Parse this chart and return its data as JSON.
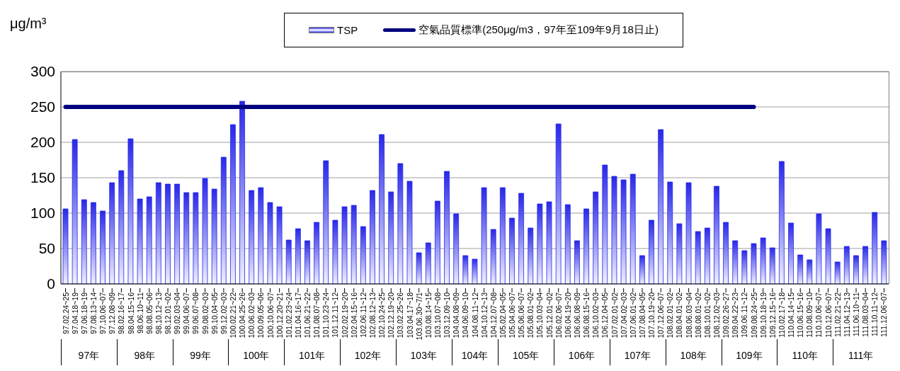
{
  "chart_data": {
    "type": "bar",
    "ylabel": "μg/m³",
    "categories": [
      "97.02.24~25",
      "97.04.18~19",
      "97.06.18~19",
      "97.08.13~14",
      "97.10.06~07",
      "97.12.08~09",
      "98.02.16~17",
      "98.04.15~16",
      "98.06.10~11",
      "98.08.05~06",
      "98.10.12~13",
      "98.12.01~02",
      "99.02.03~04",
      "99.04.06~07",
      "99.06.07~08",
      "99.08.02~03",
      "99.10.04~05",
      "99.12.02~03",
      "100.02.21~22",
      "100.04.25~26",
      "100.06.02~03",
      "100.09.05~06",
      "100.10.06~07",
      "100.12.20~21",
      "101.02.23~24",
      "101.04.16~17",
      "101.06.21~22",
      "101.08.07~08",
      "101.10.23~24",
      "101.12.11~12",
      "102.02.19~20",
      "102.04.15~16",
      "102.06.11~12",
      "102.08.12~13",
      "102.10.24~25",
      "102.12.19~20",
      "103.02.25~26",
      "103.04.17~18",
      "103.06.30~7/1",
      "103.08.14~15",
      "103.10.07~08",
      "103.12.09~10",
      "104.04.08~09",
      "104.06.09~10",
      "104.08.11~12",
      "104.10.12~13",
      "104.12.07~08",
      "105.02.04~05",
      "105.04.06~07",
      "105.06.06~07",
      "105.08.01~02",
      "105.10.03~04",
      "105.12.01~02",
      "106.02.06~07",
      "106.04.19~20",
      "106.06.08~09",
      "106.08.15~16",
      "106.10.02~03",
      "106.12.04~05",
      "107.02.01~02",
      "107.04.02~03",
      "107.06.01~02",
      "107.08.04~05",
      "107.10.19~20",
      "107.12.06~07",
      "108.02.01~02",
      "108.04.01~02",
      "108.06.03~04",
      "108.08.01~02",
      "108.10.01~02",
      "108.12.02~03",
      "109.02.26~27",
      "109.04.22~23",
      "109.06.11~12",
      "109.08.24~25",
      "109.10.18~19",
      "109.12.15~16",
      "110.02.17~18",
      "110.04.14~15",
      "110.06.15~16",
      "110.08.09~10",
      "110.10.06~07",
      "110.12.06~07",
      "111.02.21~22",
      "111.04.12~13",
      "111.06.10~11",
      "111.08.03~04",
      "111.10.11~12",
      "111.12.06~07"
    ],
    "series": [
      {
        "name": "TSP",
        "color": "#2828e8",
        "values": [
          106,
          204,
          119,
          115,
          103,
          143,
          160,
          205,
          120,
          123,
          143,
          141,
          141,
          129,
          129,
          149,
          134,
          179,
          225,
          258,
          132,
          136,
          115,
          109,
          62,
          78,
          61,
          87,
          174,
          90,
          109,
          111,
          81,
          132,
          211,
          130,
          170,
          145,
          44,
          58,
          117,
          159,
          99,
          40,
          35,
          136,
          77,
          136,
          93,
          128,
          79,
          113,
          116,
          226,
          112,
          61,
          106,
          130,
          168,
          152,
          147,
          155,
          40,
          90,
          218,
          144,
          85,
          143,
          74,
          79,
          138,
          87,
          61,
          47,
          57,
          65,
          51,
          173,
          86,
          41,
          34,
          99,
          78,
          31,
          53,
          40,
          53,
          101,
          61
        ]
      },
      {
        "name": "空氣品質標準(250μg/m3，97年至109年9月18日止)",
        "type": "line",
        "color": "#000080",
        "values": [
          250,
          250,
          250,
          250,
          250,
          250,
          250,
          250,
          250,
          250,
          250,
          250,
          250,
          250,
          250,
          250,
          250,
          250,
          250,
          250,
          250,
          250,
          250,
          250,
          250,
          250,
          250,
          250,
          250,
          250,
          250,
          250,
          250,
          250,
          250,
          250,
          250,
          250,
          250,
          250,
          250,
          250,
          250,
          250,
          250,
          250,
          250,
          250,
          250,
          250,
          250,
          250,
          250,
          250,
          250,
          250,
          250,
          250,
          250,
          250,
          250,
          250,
          250,
          250,
          250,
          250,
          250,
          250,
          250,
          250,
          250,
          250,
          250,
          250,
          250,
          null,
          null,
          null,
          null,
          null,
          null,
          null,
          null,
          null,
          null,
          null,
          null,
          null,
          null
        ]
      }
    ],
    "annotations": [
      "97年",
      "98年",
      "99年",
      "100年",
      "101年",
      "102年",
      "103年",
      "104年",
      "105年",
      "106年",
      "107年",
      "108年",
      "109年",
      "110年",
      "111年"
    ],
    "ylim": [
      0,
      300
    ],
    "yticks": [
      0,
      50,
      100,
      150,
      200,
      250,
      300
    ],
    "grid": "y",
    "legend": "top"
  }
}
